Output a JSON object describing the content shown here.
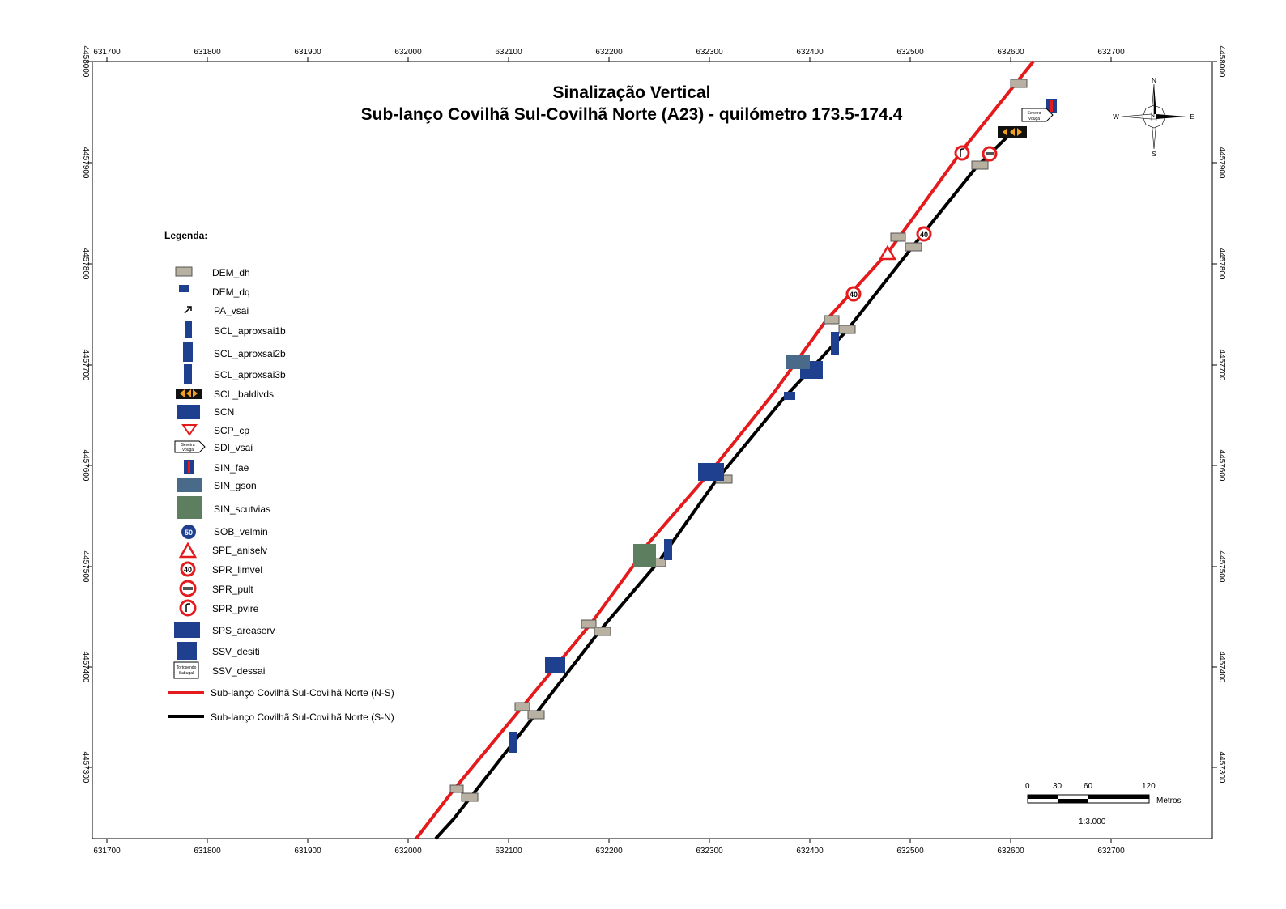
{
  "map": {
    "title_line1": "Sinalização Vertical",
    "title_line2": "Sub-lanço Covilhã Sul-Covilhã Norte (A23) - quilómetro 173.5-174.4",
    "x_ticks": [
      "631700",
      "631800",
      "631900",
      "632000",
      "632100",
      "632200",
      "632300",
      "632400",
      "632500",
      "632600",
      "632700"
    ],
    "y_ticks": [
      "4458000",
      "4457900",
      "4457800",
      "4457700",
      "4457600",
      "4457500",
      "4457400",
      "4457300"
    ],
    "route_colors": {
      "ns": "#e41a1c",
      "sn": "#000000"
    }
  },
  "compass": {
    "n": "N",
    "s": "S",
    "e": "E",
    "w": "W"
  },
  "legend": {
    "title": "Legenda:",
    "items": [
      "DEM_dh",
      "DEM_dq",
      "PA_vsai",
      "SCL_aproxsai1b",
      "SCL_aproxsai2b",
      "SCL_aproxsai3b",
      "SCL_baldivds",
      "SCN",
      "SCP_cp",
      "SDI_vsai",
      "SIN_fae",
      "SIN_gson",
      "SIN_scutvias",
      "SOB_velmin",
      "SPE_aniselv",
      "SPR_limvel",
      "SPR_pult",
      "SPR_pvire",
      "SPS_areaserv",
      "SSV_desiti",
      "SSV_dessai"
    ],
    "route_ns": "Sub-lanço Covilhã Sul-Covilhã Norte (N-S)",
    "route_sn": "Sub-lanço Covilhã Sul-Covilhã Norte (S-N)"
  },
  "sign_text": {
    "speed": "40",
    "velmin": "50",
    "sdi": [
      "Seveira",
      "Vouga"
    ],
    "ssv": [
      "Tortosendo",
      "Sabugal"
    ]
  },
  "scalebar": {
    "labels": [
      "0",
      "30",
      "60",
      "120"
    ],
    "unit": "Metros",
    "ratio": "1:3.000"
  }
}
